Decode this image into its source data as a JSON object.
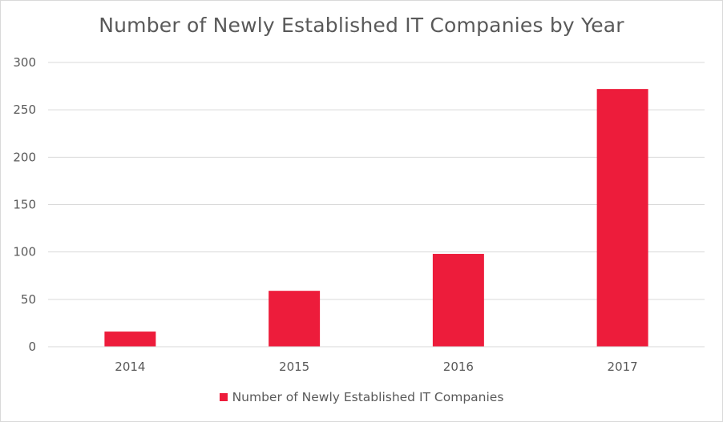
{
  "chart_data": {
    "type": "bar",
    "title": "Number of Newly Established IT Companies by Year",
    "categories": [
      "2014",
      "2015",
      "2016",
      "2017"
    ],
    "series": [
      {
        "name": "Number of Newly Established IT Companies",
        "values": [
          16,
          59,
          98,
          272
        ],
        "color": "#ed1c3b"
      }
    ],
    "ylim": [
      0,
      300
    ],
    "yticks": [
      0,
      50,
      100,
      150,
      200,
      250,
      300
    ],
    "grid": true,
    "legend_position": "bottom",
    "xlabel": "",
    "ylabel": ""
  }
}
